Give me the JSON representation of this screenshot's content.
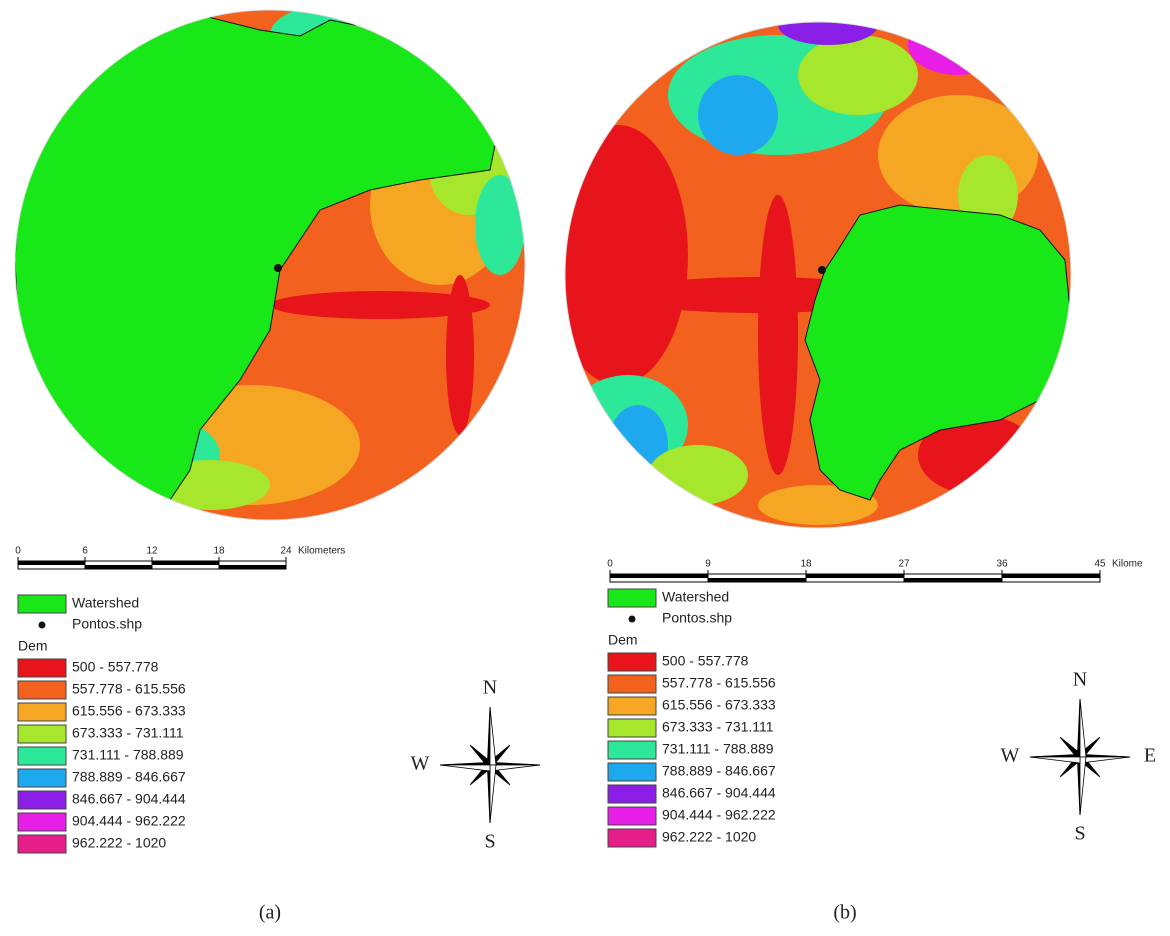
{
  "panels": [
    {
      "caption": "(a)",
      "scale_bar": {
        "ticks": [
          0,
          6,
          12,
          18,
          24
        ],
        "unit": "Kilometers"
      },
      "legend": {
        "watershed": {
          "label": "Watershed",
          "color": "#18e818"
        },
        "points": {
          "label": "Pontos.shp"
        },
        "dem_title": "Dem",
        "classes": [
          {
            "label": "500 - 557.778",
            "color": "#e8141c"
          },
          {
            "label": "557.778 - 615.556",
            "color": "#f2621e"
          },
          {
            "label": "615.556 - 673.333",
            "color": "#f5a623"
          },
          {
            "label": "673.333 - 731.111",
            "color": "#a6e62c"
          },
          {
            "label": "731.111 - 788.889",
            "color": "#2ee89a"
          },
          {
            "label": "788.889 - 846.667",
            "color": "#1ea8ee"
          },
          {
            "label": "846.667 - 904.444",
            "color": "#8a1ee6"
          },
          {
            "label": "904.444 - 962.222",
            "color": "#e61ee6"
          },
          {
            "label": "962.222 - 1020",
            "color": "#e61e8a"
          }
        ]
      },
      "compass": {
        "N": "N",
        "W": "W",
        "S": "S"
      }
    },
    {
      "caption": "(b)",
      "scale_bar": {
        "ticks": [
          0,
          9,
          18,
          27,
          36,
          45
        ],
        "unit": "Kilome"
      },
      "legend": {
        "watershed": {
          "label": "Watershed",
          "color": "#18e818"
        },
        "points": {
          "label": "Pontos.shp"
        },
        "dem_title": "Dem",
        "classes": [
          {
            "label": "500 - 557.778",
            "color": "#e8141c"
          },
          {
            "label": "557.778 - 615.556",
            "color": "#f2621e"
          },
          {
            "label": "615.556 - 673.333",
            "color": "#f5a623"
          },
          {
            "label": "673.333 - 731.111",
            "color": "#a6e62c"
          },
          {
            "label": "731.111 - 788.889",
            "color": "#2ee89a"
          },
          {
            "label": "788.889 - 846.667",
            "color": "#1ea8ee"
          },
          {
            "label": "846.667 - 904.444",
            "color": "#8a1ee6"
          },
          {
            "label": "904.444 - 962.222",
            "color": "#e61ee6"
          },
          {
            "label": "962.222 - 1020",
            "color": "#e61e8a"
          }
        ]
      },
      "compass": {
        "N": "N",
        "W": "W",
        "E": "E",
        "S": "S"
      }
    }
  ]
}
